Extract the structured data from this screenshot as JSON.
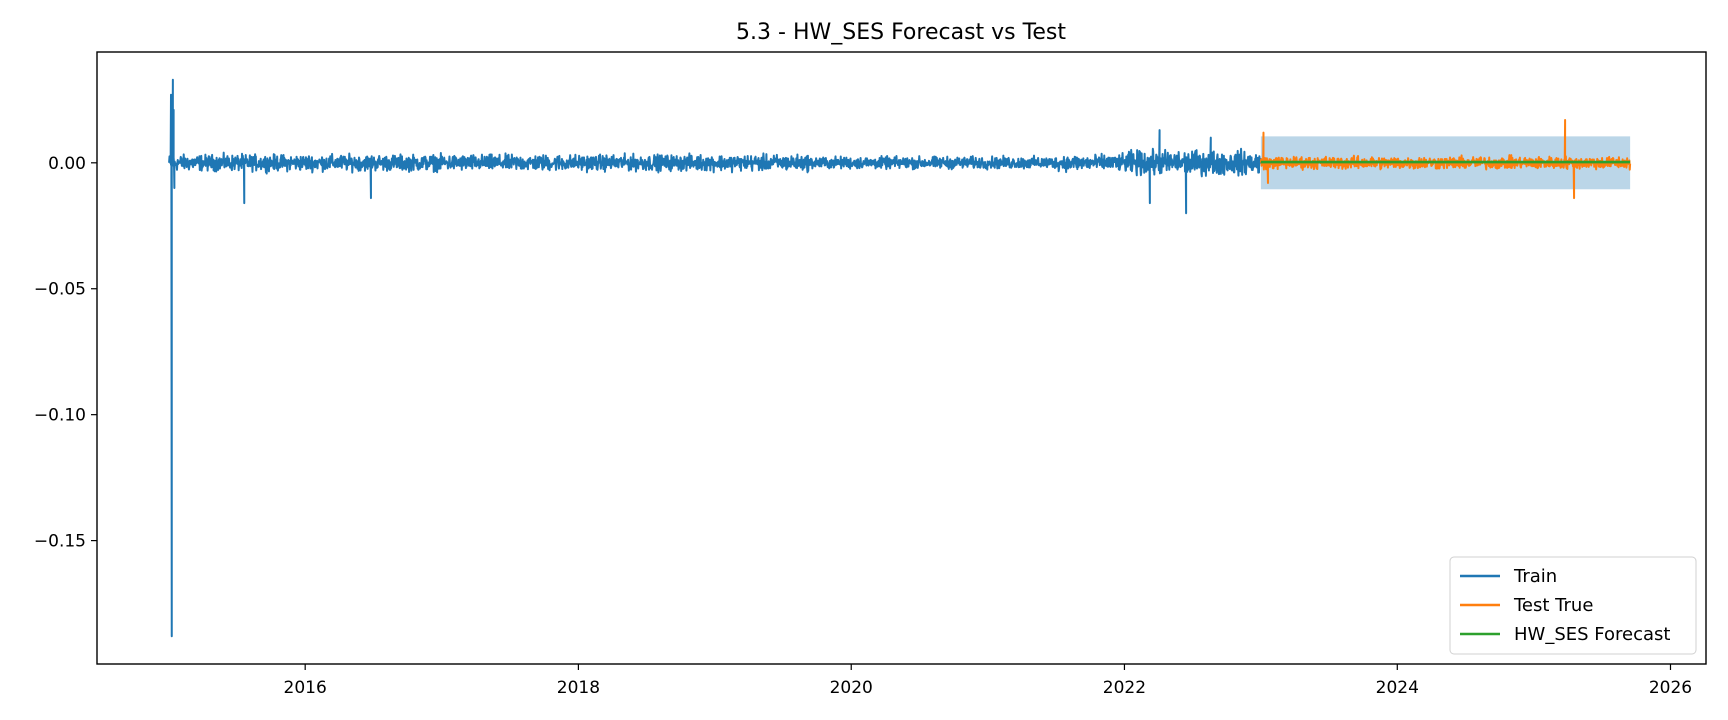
{
  "chart_data": {
    "type": "line",
    "title": "5.3 - HW_SES Forecast vs Test",
    "xlabel": "",
    "ylabel": "",
    "x_axis_type": "date",
    "xlim": [
      "2014-06-23",
      "2026-04-06"
    ],
    "ylim": [
      -0.199,
      0.044
    ],
    "x_ticks": [
      {
        "date": "2016-01-01",
        "label": "2016"
      },
      {
        "date": "2018-01-01",
        "label": "2018"
      },
      {
        "date": "2020-01-01",
        "label": "2020"
      },
      {
        "date": "2022-01-01",
        "label": "2022"
      },
      {
        "date": "2024-01-01",
        "label": "2024"
      },
      {
        "date": "2026-01-01",
        "label": "2026"
      }
    ],
    "y_ticks": [
      {
        "value": 0.0,
        "label": "0.00"
      },
      {
        "value": -0.05,
        "label": "−0.05"
      },
      {
        "value": -0.1,
        "label": "−0.10"
      },
      {
        "value": -0.15,
        "label": "−0.15"
      }
    ],
    "grid": false,
    "legend_position": "bottom-right",
    "series": [
      {
        "name": "Train",
        "color": "#1f77b4",
        "x_range": [
          "2015-01-02",
          "2023-01-01"
        ],
        "noise_amplitude": 0.0045,
        "points": [
          [
            "2015-01-02",
            0.0
          ],
          [
            "2015-01-05",
            0.0
          ],
          [
            "2015-01-07",
            0.027
          ],
          [
            "2015-01-09",
            -0.188
          ],
          [
            "2015-01-12",
            0.033
          ],
          [
            "2015-01-14",
            0.021
          ],
          [
            "2015-01-16",
            -0.01
          ],
          [
            "2015-07-22",
            -0.016
          ],
          [
            "2016-06-25",
            -0.014
          ],
          [
            "2022-03-10",
            -0.016
          ],
          [
            "2022-04-05",
            0.013
          ],
          [
            "2022-06-15",
            -0.02
          ],
          [
            "2022-08-20",
            0.01
          ]
        ]
      },
      {
        "name": "Test True",
        "color": "#ff7f0e",
        "x_range": [
          "2023-01-01",
          "2025-09-15"
        ],
        "noise_amplitude": 0.0035,
        "points": [
          [
            "2023-01-08",
            0.012
          ],
          [
            "2023-01-20",
            -0.008
          ],
          [
            "2025-03-25",
            0.017
          ],
          [
            "2025-04-18",
            -0.014
          ]
        ]
      },
      {
        "name": "HW_SES Forecast",
        "color": "#2ca02c",
        "points": [
          [
            "2023-01-01",
            0.0003
          ],
          [
            "2025-09-15",
            0.0003
          ]
        ]
      }
    ],
    "confidence_band": {
      "color": "#1f77b4",
      "opacity": 0.3,
      "x_range": [
        "2023-01-01",
        "2025-09-15"
      ],
      "y_range": [
        -0.0105,
        0.0105
      ]
    }
  }
}
